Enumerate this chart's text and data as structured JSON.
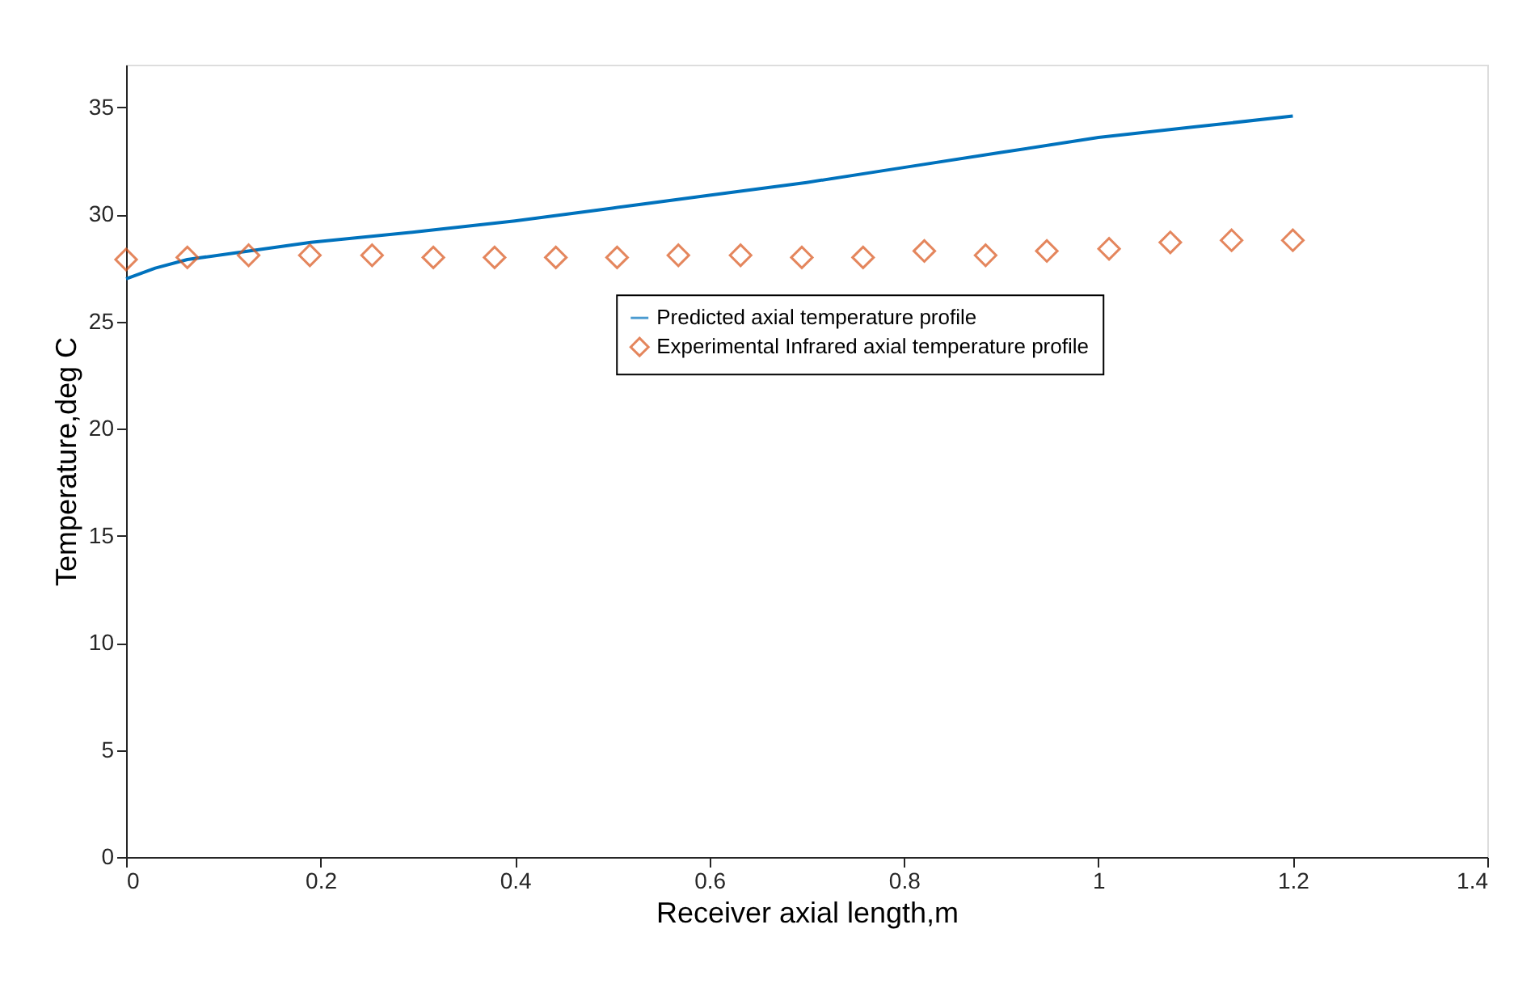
{
  "chart_data": {
    "type": "line",
    "xlabel": "Receiver axial length,m",
    "ylabel": "Temperature,deg C",
    "xlim": [
      0,
      1.4
    ],
    "xticks": [
      0,
      0.2,
      0.4,
      0.6,
      0.8,
      1,
      1.2,
      1.4
    ],
    "ylim": [
      0,
      37
    ],
    "yticks": [
      0,
      5,
      10,
      15,
      20,
      25,
      30,
      35
    ],
    "grid": false,
    "legend": "right",
    "series": [
      {
        "name": "Predicted axial temperature profile",
        "color": "#0072bd",
        "marker": "none",
        "x": [
          0,
          0.03,
          0.063,
          0.126,
          0.19,
          0.3,
          0.4,
          0.5,
          0.6,
          0.7,
          0.8,
          0.9,
          1.0,
          1.1,
          1.2
        ],
        "values": [
          27.0,
          27.5,
          27.9,
          28.3,
          28.7,
          29.2,
          29.7,
          30.3,
          30.9,
          31.5,
          32.2,
          32.9,
          33.6,
          34.1,
          34.6
        ]
      },
      {
        "name": "Experimental Infrared axial temperature profile",
        "type": "scatter",
        "color": "#d95319",
        "marker": "diamond",
        "x": [
          0,
          0.063,
          0.126,
          0.189,
          0.253,
          0.316,
          0.379,
          0.442,
          0.505,
          0.568,
          0.632,
          0.695,
          0.758,
          0.821,
          0.884,
          0.947,
          1.011,
          1.074,
          1.137,
          1.2
        ],
        "values": [
          27.9,
          28.0,
          28.1,
          28.1,
          28.1,
          28.0,
          28.0,
          28.0,
          28.0,
          28.1,
          28.1,
          28.0,
          28.0,
          28.3,
          28.1,
          28.3,
          28.4,
          28.7,
          28.8,
          28.8
        ]
      }
    ]
  }
}
